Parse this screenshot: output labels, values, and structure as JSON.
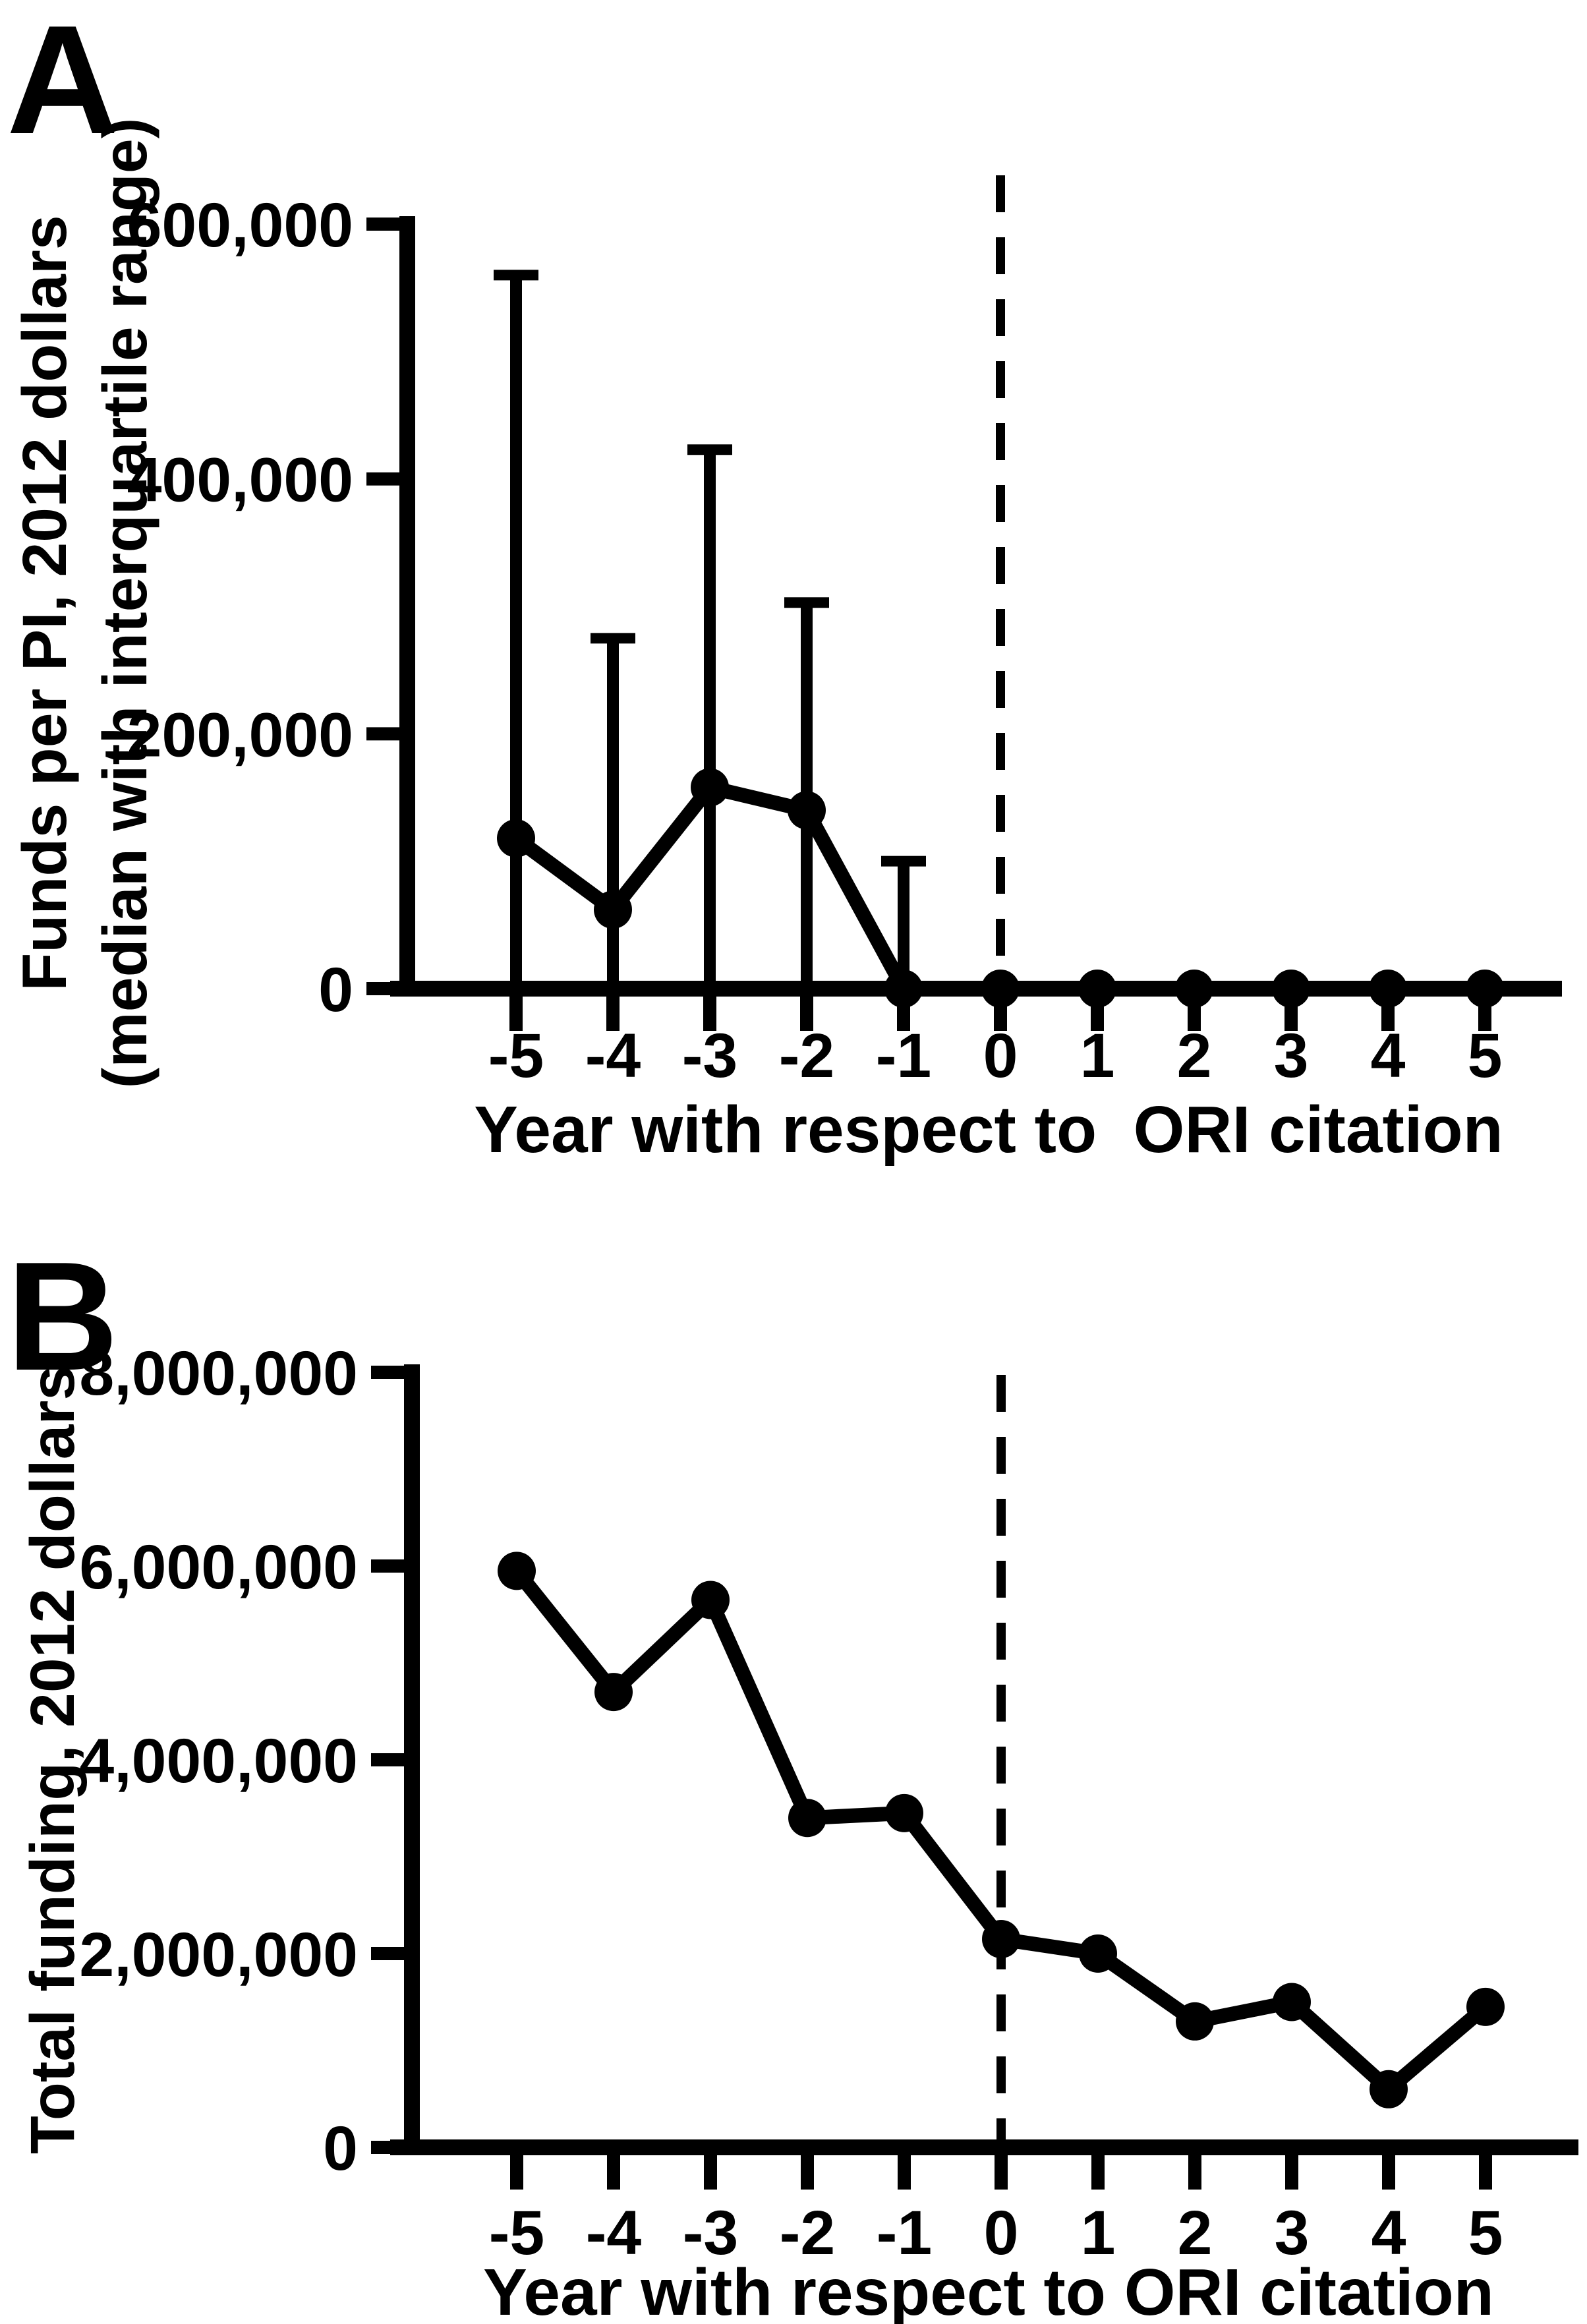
{
  "figure": {
    "background_color": "#ffffff",
    "ink_color": "#000000",
    "description": "Two-panel line figure of research funding relative to year of ORI citation"
  },
  "chart_data": [
    {
      "type": "line",
      "panel_letter": "A",
      "title": "",
      "ylabel_line1": "Funds per PI, 2012 dollars",
      "ylabel_line2": "(median with interquartile range)",
      "xlabel": "Year with respect to  ORI citation",
      "x": [
        -5,
        -4,
        -3,
        -2,
        -1,
        0,
        1,
        2,
        3,
        4,
        5
      ],
      "xtick_labels": [
        "-5",
        "-4",
        "-3",
        "-2",
        "-1",
        "0",
        "1",
        "2",
        "3",
        "4",
        "5"
      ],
      "values": [
        118000,
        62000,
        158000,
        140000,
        0,
        0,
        0,
        0,
        0,
        0,
        0
      ],
      "iqr_upper": [
        560000,
        275000,
        423000,
        303000,
        100000,
        0,
        0,
        0,
        0,
        0,
        0
      ],
      "iqr_lower": [
        0,
        0,
        0,
        0,
        0,
        0,
        0,
        0,
        0,
        0,
        0
      ],
      "ylim": [
        0,
        600000
      ],
      "yticks": [
        0,
        200000,
        400000,
        600000
      ],
      "ytick_labels": [
        "0",
        "200,000",
        "400,000",
        "600,000"
      ],
      "reference_line_x": 0,
      "reference_line_style": "dashed",
      "marker": "filled-circle",
      "grid": false,
      "legend": null
    },
    {
      "type": "line",
      "panel_letter": "B",
      "title": "",
      "ylabel_line1": "Total funding, 2012 dollars",
      "ylabel_line2": "",
      "xlabel": "Year with respect to ORI citation",
      "x": [
        -5,
        -4,
        -3,
        -2,
        -1,
        0,
        1,
        2,
        3,
        4,
        5
      ],
      "xtick_labels": [
        "-5",
        "-4",
        "-3",
        "-2",
        "-1",
        "0",
        "1",
        "2",
        "3",
        "4",
        "5"
      ],
      "values": [
        5950000,
        4700000,
        5650000,
        3400000,
        3450000,
        2150000,
        2000000,
        1300000,
        1500000,
        600000,
        1450000
      ],
      "iqr_upper": null,
      "iqr_lower": null,
      "ylim": [
        0,
        8000000
      ],
      "yticks": [
        0,
        2000000,
        4000000,
        6000000,
        8000000
      ],
      "ytick_labels": [
        "0",
        "2,000,000",
        "4,000,000",
        "6,000,000",
        "8,000,000"
      ],
      "reference_line_x": 0,
      "reference_line_style": "dashed",
      "marker": "filled-circle",
      "grid": false,
      "legend": null
    }
  ]
}
